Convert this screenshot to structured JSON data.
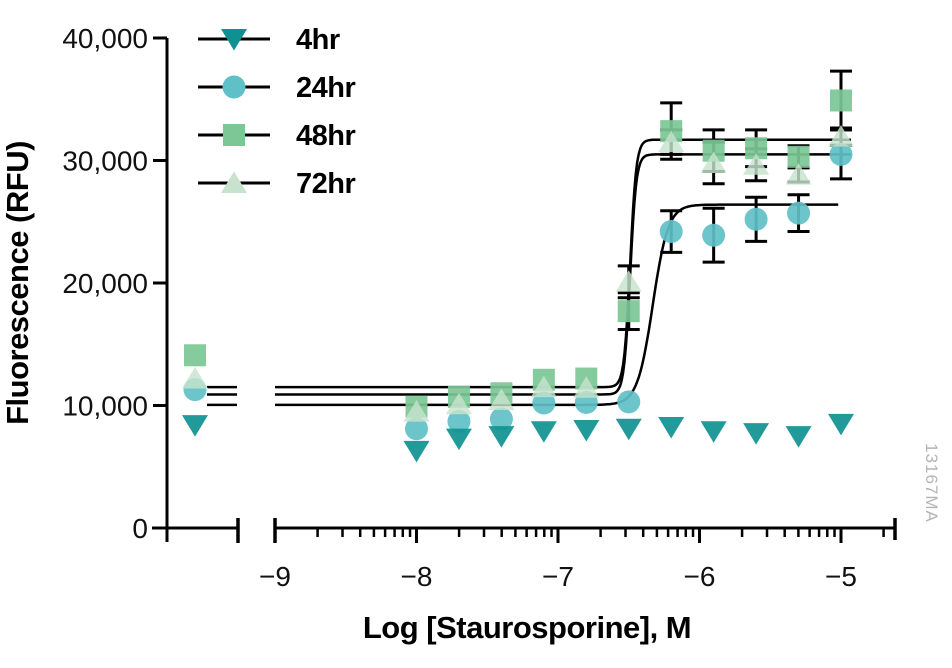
{
  "figure": {
    "watermark": "13167MA",
    "background": "#ffffff"
  },
  "chart_data": {
    "type": "scatter",
    "title": "",
    "xlabel": "Log [Staurosporine], M",
    "ylabel": "Fluorescence (RFU)",
    "x_axis": {
      "scale": "log10 molar concentration",
      "tick_values": [
        -9,
        -8,
        -7,
        -6,
        -5
      ],
      "tick_labels": [
        "−9",
        "−8",
        "−7",
        "−6",
        "−5"
      ],
      "minor_ticks": "log-decade minors (2–9) between majors, one minor (2e-5) after −5",
      "axis_break": "broken axis: short segment holding untreated control points, then gap, then log axis starting at −9",
      "grid": false
    },
    "y_axis": {
      "tick_values": [
        0,
        10000,
        20000,
        30000,
        40000
      ],
      "tick_labels": [
        "0",
        "10,000",
        "20,000",
        "30,000",
        "40,000"
      ],
      "range": [
        0,
        40000
      ],
      "grid": false
    },
    "legend": {
      "position": "top-left",
      "entries": [
        "4hr",
        "24hr",
        "48hr",
        "72hr"
      ]
    },
    "x_values": [
      "control",
      -8,
      -7.7,
      -7.4,
      -7.1,
      -6.8,
      -6.5,
      -6.2,
      -5.9,
      -5.6,
      -5.3,
      -5
    ],
    "series": [
      {
        "name": "4hr",
        "marker": "triangle-down",
        "color": "#0f9191",
        "values": [
          8400,
          6300,
          7300,
          7500,
          7900,
          8000,
          8100,
          8250,
          7900,
          7750,
          7500,
          8500
        ],
        "errors": [
          null,
          null,
          null,
          null,
          null,
          null,
          null,
          null,
          null,
          null,
          null,
          null
        ],
        "fit": null
      },
      {
        "name": "24hr",
        "marker": "circle",
        "color": "#5fc0c7",
        "values": [
          11300,
          8100,
          8700,
          8900,
          10200,
          10250,
          10300,
          24200,
          23900,
          25200,
          25700,
          30500
        ],
        "errors": [
          null,
          null,
          null,
          null,
          null,
          null,
          null,
          1700,
          2200,
          1800,
          1500,
          2000
        ],
        "fit": {
          "bottom": 10050,
          "top": 26400,
          "logec50": -6.33,
          "hill": 8,
          "end_log": -5.02
        }
      },
      {
        "name": "48hr",
        "marker": "square",
        "color": "#7cc795",
        "values": [
          14100,
          9900,
          10700,
          11000,
          12100,
          12200,
          17700,
          32400,
          30800,
          31000,
          30300,
          34900
        ],
        "errors": [
          null,
          null,
          null,
          null,
          null,
          null,
          1500,
          2300,
          1700,
          1500,
          900,
          2400
        ],
        "fit": {
          "bottom": 11500,
          "top": 31700,
          "logec50": -6.49,
          "hill": 20,
          "end_log": -4.93
        }
      },
      {
        "name": "72hr",
        "marker": "triangle-up",
        "color": "#c7e3cd",
        "values": [
          12200,
          9500,
          10100,
          10450,
          11500,
          11450,
          20100,
          31500,
          29800,
          29650,
          28850,
          31950
        ],
        "errors": [
          null,
          null,
          null,
          null,
          null,
          null,
          1300,
          1000,
          1700,
          1300,
          600,
          700
        ],
        "fit": {
          "bottom": 10900,
          "top": 30500,
          "logec50": -6.49,
          "hill": 20,
          "end_log": -4.93
        }
      }
    ]
  }
}
